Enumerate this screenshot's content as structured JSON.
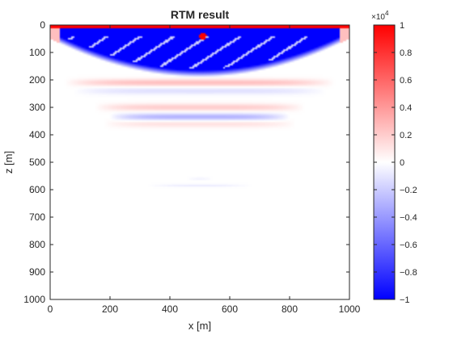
{
  "chart_data": {
    "type": "heatmap",
    "title": "RTM result",
    "xlabel": "x [m]",
    "ylabel": "z [m]",
    "xlim": [
      0,
      1000
    ],
    "ylim": [
      0,
      1000
    ],
    "y_reversed": true,
    "x_ticks": [
      "0",
      "200",
      "400",
      "600",
      "800",
      "1000"
    ],
    "y_ticks": [
      "0",
      "100",
      "200",
      "300",
      "400",
      "500",
      "600",
      "700",
      "800",
      "900",
      "1000"
    ],
    "colorbar": {
      "colormap": "blue-white-red",
      "min_color": "#0000ff",
      "mid_color": "#ffffff",
      "max_color": "#ff0000",
      "range": [
        -10000,
        10000
      ],
      "multiplier": "×10",
      "exponent": "4",
      "ticks": [
        "1",
        "0.8",
        "0.6",
        "0.4",
        "0.2",
        "0",
        "−0.2",
        "−0.4",
        "−0.6",
        "−0.8",
        "−1"
      ]
    },
    "features": [
      {
        "name": "surface band",
        "x_range": [
          0,
          1000
        ],
        "z_range": [
          0,
          15
        ],
        "approx_value": 1.0
      },
      {
        "name": "source point",
        "x": 510,
        "z": 40,
        "approx_value": 1.0
      },
      {
        "name": "main reflector",
        "x_center": 500,
        "z_center": 110,
        "half_width_x": 500,
        "approx_value": -1.0
      },
      {
        "name": "band 1",
        "z_center": 210,
        "x_range": [
          50,
          950
        ],
        "approx_value": 0.25
      },
      {
        "name": "band 2",
        "z_center": 240,
        "x_range": [
          80,
          920
        ],
        "approx_value": -0.12
      },
      {
        "name": "band 3",
        "z_center": 300,
        "x_range": [
          150,
          850
        ],
        "approx_value": 0.2
      },
      {
        "name": "band 4",
        "z_center": 335,
        "x_range": [
          200,
          800
        ],
        "approx_value": -0.3
      },
      {
        "name": "band 5",
        "z_center": 360,
        "x_range": [
          180,
          820
        ],
        "approx_value": 0.12
      },
      {
        "name": "deep weak event",
        "z_center": 585,
        "x_range": [
          330,
          670
        ],
        "approx_value": -0.08
      },
      {
        "name": "deep weak event 2",
        "z_center": 560,
        "x_range": [
          460,
          540
        ],
        "approx_value": -0.05
      }
    ]
  }
}
